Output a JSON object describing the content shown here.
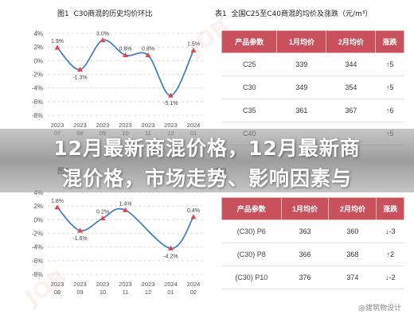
{
  "overlay": {
    "line1": "12月最新商混价格，12月最新商",
    "line2": "混价格，市场走势、影响因素与"
  },
  "watermark": "JOB",
  "credit": "@建筑物设计",
  "charts": [
    {
      "fig_label": "图1",
      "title": "C30商混的历史均价环比",
      "y_ticks": [
        "4%",
        "2%",
        "0%",
        "-2%",
        "-4%",
        "-6%",
        "-8%"
      ],
      "x_labels": [
        [
          "2023",
          "07"
        ],
        [
          "2023",
          "08"
        ],
        [
          "2023",
          "09"
        ],
        [
          "2023",
          "10"
        ],
        [
          "2023",
          "11"
        ],
        [
          "2023",
          "12"
        ],
        [
          "2024",
          "01"
        ]
      ],
      "point_labels": [
        "1.9%",
        "-1.3%",
        "3.0%",
        "0.8%",
        "0.8%",
        "-5.1%",
        "1.5%"
      ]
    },
    {
      "fig_label": "图3",
      "title": "",
      "y_ticks": [
        "4%",
        "2%",
        "0%",
        "-2%",
        "-4%",
        "-6%",
        "-8%"
      ],
      "x_labels": [
        [
          "2023",
          "08"
        ],
        [
          "2023",
          "09"
        ],
        [
          "2023",
          "10"
        ],
        [
          "2023",
          "11"
        ],
        [
          "2023",
          "12"
        ],
        [
          "2024",
          "01"
        ],
        [
          "2024",
          "02"
        ]
      ],
      "point_labels": [
        "1.8%",
        "-1.6%",
        "0.2%",
        "1.4%",
        "",
        "-4.2%",
        "0.4%"
      ]
    }
  ],
  "chart_data": [
    {
      "type": "line",
      "title": "C30商混的历史均价环比",
      "categories": [
        "2023 07",
        "2023 08",
        "2023 09",
        "2023 10",
        "2023 11",
        "2023 12",
        "2024 01"
      ],
      "values": [
        1.9,
        -1.3,
        3.0,
        0.8,
        0.8,
        -5.1,
        1.5
      ],
      "ylim": [
        -8,
        4
      ],
      "y_unit": "%",
      "grid": "dashed horizontal",
      "line_color": "#4a7fc1",
      "marker_color": "#d9474f"
    },
    {
      "type": "line",
      "title": "",
      "categories": [
        "2023 08",
        "2023 09",
        "2023 10",
        "2023 11",
        "2023 12",
        "2024 01",
        "2024 02"
      ],
      "values": [
        1.8,
        -1.6,
        0.2,
        1.4,
        null,
        -4.2,
        0.4
      ],
      "ylim": [
        -8,
        4
      ],
      "y_unit": "%",
      "grid": "dashed horizontal",
      "line_color": "#4a7fc1",
      "marker_color": "#d9474f"
    }
  ],
  "tables": [
    {
      "fig_label": "表1",
      "title": "全国C25至C40商混的均价及涨跌（元/m³）",
      "headers": [
        "产品参数",
        "1月均价",
        "2月均价",
        "涨跌"
      ],
      "rows": [
        {
          "cat": "C25",
          "m1": "339",
          "m2": "344",
          "chg": "↑5",
          "dir": "up"
        },
        {
          "cat": "C30",
          "m1": "349",
          "m2": "354",
          "chg": "↑5",
          "dir": "up"
        },
        {
          "cat": "C35",
          "m1": "361",
          "m2": "367",
          "chg": "↑6",
          "dir": "up"
        },
        {
          "cat": "C40",
          "m1": "",
          "m2": "",
          "chg": "↑5",
          "dir": "up"
        }
      ]
    },
    {
      "fig_label": "表2",
      "title": "",
      "headers": [
        "产品参数",
        "1月均价",
        "2月均价",
        "涨跌"
      ],
      "rows": [
        {
          "cat": "(C30) P6",
          "m1": "363",
          "m2": "360",
          "chg": "↓-3",
          "dir": "down"
        },
        {
          "cat": "(C30) P8",
          "m1": "366",
          "m2": "368",
          "chg": "↑2",
          "dir": "up"
        },
        {
          "cat": "(C30) P10",
          "m1": "376",
          "m2": "374",
          "chg": "↓-2",
          "dir": "down"
        }
      ]
    }
  ],
  "colors": {
    "header_bg": "#c9515c",
    "up": "#d02a2a",
    "down": "#2d9a3d"
  }
}
